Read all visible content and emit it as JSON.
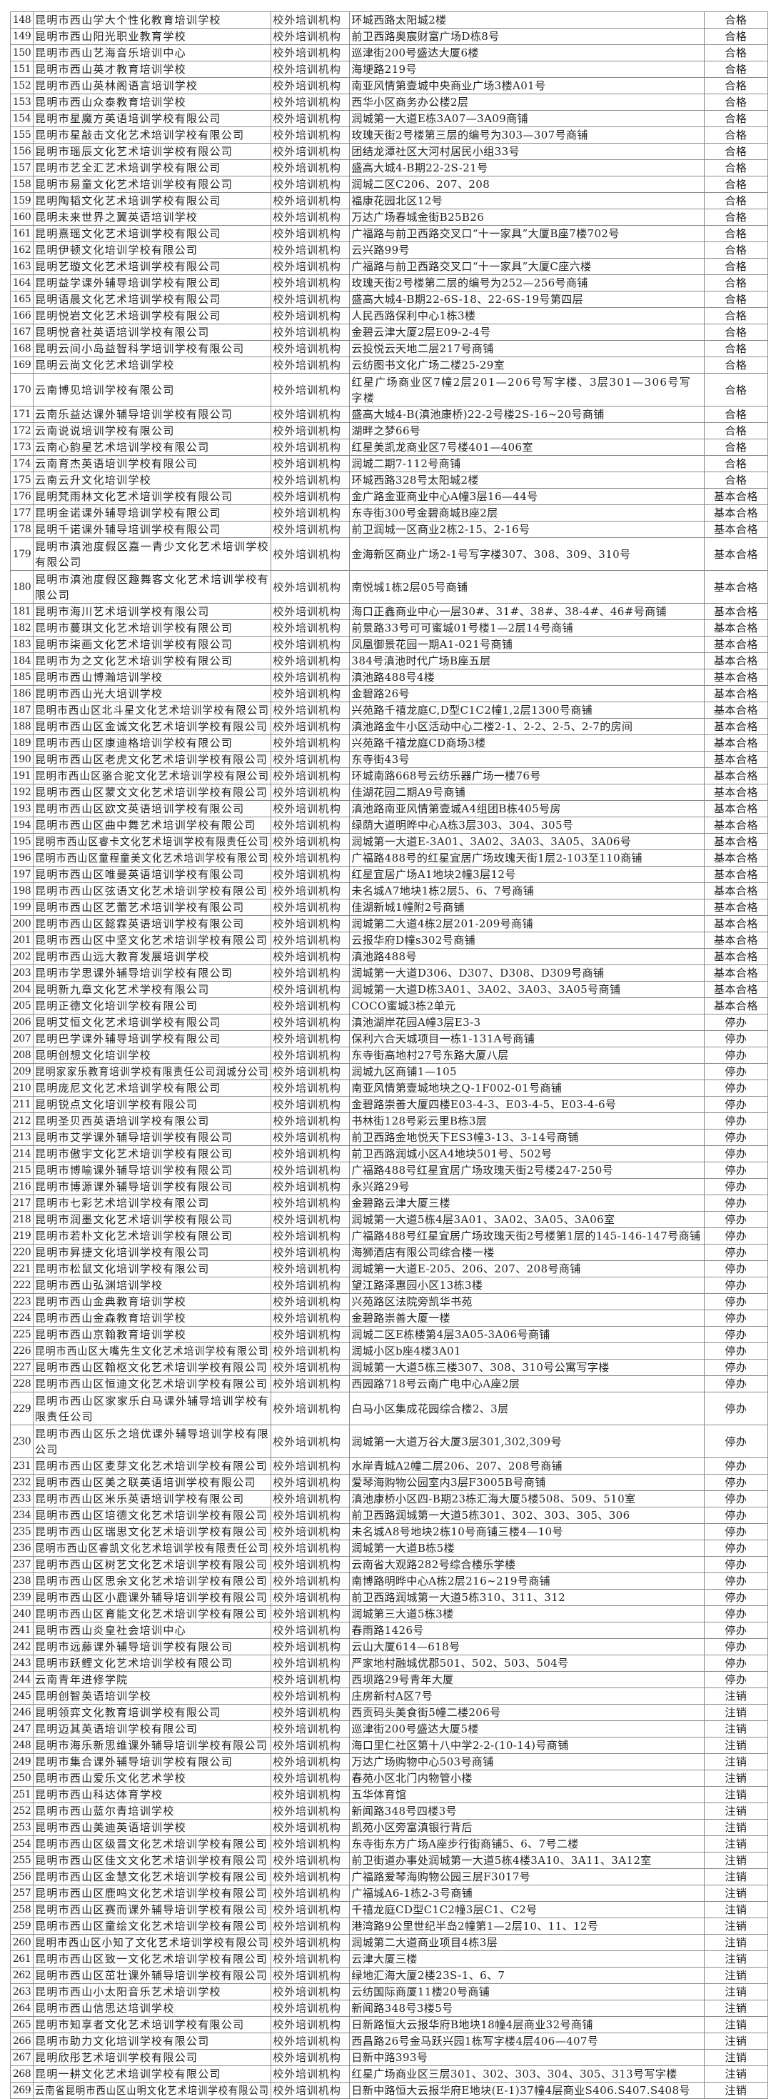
{
  "table": {
    "rows": [
      [
        "148",
        "昆明市西山学大个性化教育培训学校",
        "校外培训机构",
        "环城西路太阳城2楼",
        "合格"
      ],
      [
        "149",
        "昆明市西山阳光职业教育学校",
        "校外培训机构",
        "前卫西路奥宸财富广场D栋8号",
        "合格"
      ],
      [
        "150",
        "昆明市西山艺海音乐培训中心",
        "校外培训机构",
        "巡津街200号盛达大厦6楼",
        "合格"
      ],
      [
        "151",
        "昆明市西山英才教育培训学校",
        "校外培训机构",
        "海埂路219号",
        "合格"
      ],
      [
        "152",
        "昆明市西山英林阁语言培训学校",
        "校外培训机构",
        "南亚风情第壹城中央商业广场3楼A01号",
        "合格"
      ],
      [
        "153",
        "昆明市西山众泰教育培训学校",
        "校外培训机构",
        "西华小区商务办公楼2层",
        "合格"
      ],
      [
        "154",
        "昆明市星魔方英语培训学校有限公司",
        "校外培训机构",
        "润城第一大道E栋3A07—3A09商铺",
        "合格"
      ],
      [
        "155",
        "昆明市星敲击文化艺术培训学校有限公司",
        "校外培训机构",
        "玫瑰天街2号楼第三层的编号为303—307号商铺",
        "合格"
      ],
      [
        "156",
        "昆明市瑶辰文化艺术培训学校有限公司",
        "校外培训机构",
        "团结龙潭社区大河村居民小组33号",
        "合格"
      ],
      [
        "157",
        "昆明市艺全汇艺术培训学校有限公司",
        "校外培训机构",
        "盛高大城4-B期22-2S-21号",
        "合格"
      ],
      [
        "158",
        "昆明市易童文化艺术培训学校有限公司",
        "校外培训机构",
        "润城二区C206、207、208",
        "合格"
      ],
      [
        "159",
        "昆明陶韬文化艺术培训学校有限公司",
        "校外培训机构",
        "福康花园北区12号",
        "合格"
      ],
      [
        "160",
        "昆明未来世界之翼英语培训学校",
        "校外培训机构",
        "万达广场春城金街B25B26",
        "合格"
      ],
      [
        "161",
        "昆明熹瑶文化艺术培训学校有限公司",
        "校外培训机构",
        "广福路与前卫西路交叉口“十一家具”大厦B座7楼702号",
        "合格"
      ],
      [
        "162",
        "昆明伊顿文化培训学校有限公司",
        "校外培训机构",
        "云兴路99号",
        "合格"
      ],
      [
        "163",
        "昆明艺璇文化艺术培训学校有限公司",
        "校外培训机构",
        "广福路与前卫西路交叉口“十一家具”大厦C座六楼",
        "合格"
      ],
      [
        "164",
        "昆明益学课外辅导培训学校有限公司",
        "校外培训机构",
        "玫瑰天街2号楼第二层的编号为252—256号商铺",
        "合格"
      ],
      [
        "165",
        "昆明语晨文化艺术培训学校有限公司",
        "校外培训机构",
        "盛高大城4-B期22-6S-18、22-6S-19号第四层",
        "合格"
      ],
      [
        "166",
        "昆明悦岩文化艺术培训学校有限公司",
        "校外培训机构",
        "人民西路保利中心1栋3楼",
        "合格"
      ],
      [
        "167",
        "昆明悦音社英语培训学校有限公司",
        "校外培训机构",
        "金碧云津大厦2层E09-2-4号",
        "合格"
      ],
      [
        "168",
        "昆明云间小岛益智科学培训学校有限公司",
        "校外培训机构",
        "云投悦云天地二层217号商铺",
        "合格"
      ],
      [
        "169",
        "昆明云尚文化艺术培训学校",
        "校外培训机构",
        "云纺图书文化广场二楼25-29室",
        "合格"
      ],
      [
        "170",
        "云南博见培训学校有限公司",
        "校外培训机构",
        "红星广场商业区7幢2层201—206号写字楼、3层301—306号写字楼",
        "合格"
      ],
      [
        "171",
        "云南乐益达课外辅导培训学校有限公司",
        "校外培训机构",
        "盛高大城4-B(滇池康桥)22-2号楼2S-16~20号商铺",
        "合格"
      ],
      [
        "172",
        "云南说说培训学校有限公司",
        "校外培训机构",
        "湖畔之梦66号",
        "合格"
      ],
      [
        "173",
        "云南心韵星艺术培训学校有限公司",
        "校外培训机构",
        "红星美凯龙商业区7号楼401—406室",
        "合格"
      ],
      [
        "174",
        "云南育杰英语培训学校有限公司",
        "校外培训机构",
        "润城二期7-112号商铺",
        "合格"
      ],
      [
        "175",
        "云南云升文化培训学校",
        "校外培训机构",
        "环城西路328号太阳城2楼",
        "合格"
      ],
      [
        "176",
        "昆明梵雨林文化艺术培训学校有限公司",
        "校外培训机构",
        "金广路金亚商业中心A幢3层16—44号",
        "基本合格"
      ],
      [
        "177",
        "昆明金诺课外辅导培训学校有限公司",
        "校外培训机构",
        "东寺街300号金碧商城B座2层",
        "基本合格"
      ],
      [
        "178",
        "昆明千诺课外辅导培训学校有限公司",
        "校外培训机构",
        "前卫润城一区商业2栋2-15、2-16号",
        "基本合格"
      ],
      [
        "179",
        "昆明市滇池度假区嘉一青少文化艺术培训学校有限公司",
        "校外培训机构",
        "金海新区商业广场2-1号写字楼307、308、309、310号",
        "基本合格"
      ],
      [
        "180",
        "昆明市滇池度假区趣舞客文化艺术培训学校有限公司",
        "校外培训机构",
        "南悦城1栋2层05号商铺",
        "基本合格"
      ],
      [
        "181",
        "昆明市海川艺术培训学校有限公司",
        "校外培训机构",
        "海口正鑫商业中心一层30#、31#、38#、38-4#、46#号商铺",
        "基本合格"
      ],
      [
        "182",
        "昆明市蔓琪文化艺术培训学校有限公司",
        "校外培训机构",
        "前景路33号可可蜜城01号楼1—2层14号商铺",
        "基本合格"
      ],
      [
        "183",
        "昆明市柒画文化艺术培训学校有限公司",
        "校外培训机构",
        "凤凰御景花园一期A1-021号商铺",
        "基本合格"
      ],
      [
        "184",
        "昆明市为之文化艺术培训学校有限公司",
        "校外培训机构",
        "384号滇池时代广场B座五层",
        "基本合格"
      ],
      [
        "185",
        "昆明市西山博瀚培训学校",
        "校外培训机构",
        "滇池路488号4楼",
        "基本合格"
      ],
      [
        "186",
        "昆明市西山光大培训学校",
        "校外培训机构",
        "金碧路26号",
        "基本合格"
      ],
      [
        "187",
        "昆明市西山区北斗星文化艺术培训学校有限公司",
        "校外培训机构",
        "兴苑路千禧龙庭C,D型C1C2幢1,2层1300号商铺",
        "基本合格"
      ],
      [
        "188",
        "昆明市西山区金诚文化艺术培训学校有限公司",
        "校外培训机构",
        "滇池路金牛小区活动中心二楼2-1、2-2、2-5、2-7的房间",
        "基本合格"
      ],
      [
        "189",
        "昆明市西山区康迪格培训学校有限公司",
        "校外培训机构",
        "兴苑路千禧龙庭CD商场3楼",
        "基本合格"
      ],
      [
        "190",
        "昆明市西山区老虎文化艺术培训学校有限公司",
        "校外培训机构",
        "东寺街43号",
        "基本合格"
      ],
      [
        "191",
        "昆明市西山区骆合驼文化艺术培训学校有限公司",
        "校外培训机构",
        "环城南路668号云纺乐器广场一楼76号",
        "基本合格"
      ],
      [
        "192",
        "昆明市西山区蒙文文化艺术培训学校有限公司",
        "校外培训机构",
        "佳湖花园二期A9号商铺",
        "基本合格"
      ],
      [
        "193",
        "昆明市西山区欧文英语培训学校有限公司",
        "校外培训机构",
        "滇池路南亚风情第壹城A4组团B栋405号房",
        "基本合格"
      ],
      [
        "194",
        "昆明市西山区曲中舞艺术培训学校有限公司",
        "校外培训机构",
        "绿荫大道明晔中心A栋3层303、304、305号",
        "基本合格"
      ],
      [
        "195",
        "昆明市西山区睿卡文化艺术培训学校有限责任公司",
        "校外培训机构",
        "润城第一大道E-3A01、3A02、3A03、3A05、3A06号",
        "基本合格"
      ],
      [
        "196",
        "昆明市西山区童程童美文化艺术培训学校有限公司",
        "校外培训机构",
        "广福路488号的红星宜居广场玫瑰天街1层2-103至110商铺",
        "基本合格"
      ],
      [
        "197",
        "昆明市西山区唯曼英语培训学校有限公司",
        "校外培训机构",
        "红星宜居广场A1地块2幢3层12号",
        "基本合格"
      ],
      [
        "198",
        "昆明市西山区弦语文化艺术培训学校有限公司",
        "校外培训机构",
        "未名城A7地块1栋2层5、6、7号商铺",
        "基本合格"
      ],
      [
        "199",
        "昆明市西山区艺蕾艺术培训学校有限公司",
        "校外培训机构",
        "佳湖新城1幢附2号商铺",
        "基本合格"
      ],
      [
        "200",
        "昆明市西山区懿霖英语培训学校有限公司",
        "校外培训机构",
        "润城第二大道4栋2层201-209号商铺",
        "基本合格"
      ],
      [
        "201",
        "昆明市西山区中坚文化艺术培训学校有限公司",
        "校外培训机构",
        "云报华府D幢s302号商铺",
        "基本合格"
      ],
      [
        "202",
        "昆明市西山远大教育发展培训学校",
        "校外培训机构",
        "滇池路488号",
        "基本合格"
      ],
      [
        "203",
        "昆明市学思课外辅导培训学校有限公司",
        "校外培训机构",
        "润城第一大道D306、D307、D308、D309号商铺",
        "基本合格"
      ],
      [
        "204",
        "昆明新九章文化艺术学校有限公司",
        "校外培训机构",
        "润城第一大道D栋3A01、3A02、3A03、3A05号商铺",
        "基本合格"
      ],
      [
        "205",
        "昆明正德文化培训学校有限公司",
        "校外培训机构",
        "COCO蜜城3栋2单元",
        "基本合格"
      ],
      [
        "206",
        "昆明艾恒文化艺术培训学校有限公司",
        "校外培训机构",
        "滇池湖岸花园A幢3层E3-3",
        "停办"
      ],
      [
        "207",
        "昆明巴学课外辅导培训学校有限公司",
        "校外培训机构",
        "保利六合天城项目一栋1-131A号商铺",
        "停办"
      ],
      [
        "208",
        "昆明创想文化培训学校",
        "校外培训机构",
        "东寺街高地村27号东路大厦八层",
        "停办"
      ],
      [
        "209",
        "昆明家家乐教育培训学校有限责任公司润城分公司",
        "校外培训机构",
        "润城九区商铺1—105",
        "停办"
      ],
      [
        "210",
        "昆明庞尼文化艺术培训学校有限公司",
        "校外培训机构",
        "南亚风情第壹城地块之Q-1F002-01号商铺",
        "停办"
      ],
      [
        "211",
        "昆明锐点文化培训学校有限公司",
        "校外培训机构",
        "金碧路崇善大厦四楼E03-4-3、E03-4-5、E03-4-6号",
        "停办"
      ],
      [
        "212",
        "昆明圣贝西英语培训学校有限公司",
        "校外培训机构",
        "书林街128号彩云里B栋3层",
        "停办"
      ],
      [
        "213",
        "昆明市艾学课外辅导培训学校有限公司",
        "校外培训机构",
        "前卫西路金地悦天下ES3幢3-13、3-14号商铺",
        "停办"
      ],
      [
        "214",
        "昆明市傲宇文化艺术培训学校有限公司",
        "校外培训机构",
        "前卫西路润城小区A4地块501号、502号",
        "停办"
      ],
      [
        "215",
        "昆明市博喻课外辅导培训学校有限公司",
        "校外培训机构",
        "广福路488号红星宜居广场玫瑰天街2号楼247-250号",
        "停办"
      ],
      [
        "216",
        "昆明市博源课外辅导培训学校有限公司",
        "校外培训机构",
        "永兴路29号",
        "停办"
      ],
      [
        "217",
        "昆明市七彩艺术培训学校有限公司",
        "校外培训机构",
        "金碧路云津大厦三楼",
        "停办"
      ],
      [
        "218",
        "昆明市润墨文化艺术培训学校有限公司",
        "校外培训机构",
        "润城第一大道5栋4层3A01、3A02、3A05、3A06室",
        "停办"
      ],
      [
        "219",
        "昆明市若朴文化艺术培训学校有限公司",
        "校外培训机构",
        "广福路488号红星宜居广场玫瑰天街2号楼第1层的145-146-147号商铺",
        "停办"
      ],
      [
        "220",
        "昆明市昇捷文化培训学校有限公司",
        "校外培训机构",
        "海狮酒店有限公司综合楼一楼",
        "停办"
      ],
      [
        "221",
        "昆明市松鼠文化培训学校有限公司",
        "校外培训机构",
        "润城第一大道E-205、206、207、208号商铺",
        "停办"
      ],
      [
        "222",
        "昆明市西山弘渊培训学校",
        "校外培训机构",
        "望江路泽惠园小区13栋3楼",
        "停办"
      ],
      [
        "223",
        "昆明市西山金典教育培训学校",
        "校外培训机构",
        "兴苑路区法院旁凯华书苑",
        "停办"
      ],
      [
        "224",
        "昆明市西山金森教育培训学校",
        "校外培训机构",
        "金碧路崇善大厦一楼",
        "停办"
      ],
      [
        "225",
        "昆明市西山京翰教育培训学校",
        "校外培训机构",
        "润城二区E栋楼第4层3A05-3A06号商铺",
        "停办"
      ],
      [
        "226",
        "昆明市西山区大嘴先生文化艺术培训学校有限公司",
        "校外培训机构",
        "润城小区b座4楼3A01",
        "停办"
      ],
      [
        "227",
        "昆明市西山区翰枢文化艺术培训学校有限公司",
        "校外培训机构",
        "润城第一大道5栋三楼307、308、310号公寓写字楼",
        "停办"
      ],
      [
        "228",
        "昆明市西山区恒迪文化艺术培训学校有限公司",
        "校外培训机构",
        "西园路718号云南广电中心A座2层",
        "停办"
      ],
      [
        "229",
        "昆明市西山区家家乐白马课外辅导培训学校有限责任公司",
        "校外培训机构",
        "白马小区集成花园综合楼2、3层",
        "停办"
      ],
      [
        "230",
        "昆明市西山区乐之培优课外辅导培训学校有限公司",
        "校外培训机构",
        "润城第一大道万谷大厦3层301,302,309号",
        "停办"
      ],
      [
        "231",
        "昆明市西山区麦芽文化艺术培训学校有限公司",
        "校外培训机构",
        "水岸青城A2幢二层206、207、208号商铺",
        "停办"
      ],
      [
        "232",
        "昆明市西山区美之联英语培训学校有限公司",
        "校外培训机构",
        "爱琴海购物公园室内3层F3005B号商铺",
        "停办"
      ],
      [
        "233",
        "昆明市西山区米乐英语培训学校有限公司",
        "校外培训机构",
        "滇池康桥小区四-B期23栋汇海大厦5楼508、509、510室",
        "停办"
      ],
      [
        "234",
        "昆明市西山区培德文化艺术培训学校有限公司",
        "校外培训机构",
        "前卫西路润城第一大道5栋301、302、303、305、306",
        "停办"
      ],
      [
        "235",
        "昆明市西山区瑞思文化艺术培训学校有限公司",
        "校外培训机构",
        "未名城A8号地块2栋10号商铺三楼4—10号",
        "停办"
      ],
      [
        "236",
        "昆明市西山区睿凯文化艺术培训学校有限责任公司",
        "校外培训机构",
        "润城第一大道B栋5楼",
        "停办"
      ],
      [
        "237",
        "昆明市西山区树艺文化艺术培训学校有限公司",
        "校外培训机构",
        "云南省大观路282号综合楼乐学楼",
        "停办"
      ],
      [
        "238",
        "昆明市西山区思余文化艺术培训学校有限公司",
        "校外培训机构",
        "南博路明晔中心A栋2层216~219号商铺",
        "停办"
      ],
      [
        "239",
        "昆明市西山区小鹿课外辅导培训学校有限公司",
        "校外培训机构",
        "前卫西路润城第一大道5栋310、311、312",
        "停办"
      ],
      [
        "240",
        "昆明市西山区育能文化艺术培训学校有限公司",
        "校外培训机构",
        "润城第三大道5栋3楼",
        "停办"
      ],
      [
        "241",
        "昆明市西山炎皇社会培训中心",
        "校外培训机构",
        "春雨路1426号",
        "停办"
      ],
      [
        "242",
        "昆明市远藤课外辅导培训学校有限公司",
        "校外培训机构",
        "云山大厦614—618号",
        "停办"
      ],
      [
        "243",
        "昆明市跃鲤文化艺术培训学校有限公司",
        "校外培训机构",
        "严家地村融城优郡501、502、503、504号",
        "停办"
      ],
      [
        "244",
        "云南青年进修学院",
        "校外培训机构",
        "西坝路29号青年大厦",
        "停办"
      ],
      [
        "245",
        "昆明创智英语培训学校",
        "校外培训机构",
        "庄房新村A区7号",
        "注销"
      ],
      [
        "246",
        "昆明领弈文化教育培训学校有限公司",
        "校外培训机构",
        "西贡码头美食街5幢二楼206号",
        "注销"
      ],
      [
        "247",
        "昆明迈其英语培训学校有限公司",
        "校外培训机构",
        "巡津街200号盛达大厦5楼",
        "注销"
      ],
      [
        "248",
        "昆明市海乐新思维课外辅导培训学校有限公司",
        "校外培训机构",
        "海口里仁社区第十八中学2-2-(10-14)号商铺",
        "注销"
      ],
      [
        "249",
        "昆明市集合课外辅导培训学校有限公司",
        "校外培训机构",
        "万达广场购物中心503号商铺",
        "注销"
      ],
      [
        "250",
        "昆明市西山爱乐文化艺术学校",
        "校外培训机构",
        "春苑小区北门内物管小楼",
        "注销"
      ],
      [
        "251",
        "昆明市西山科达体育学校",
        "校外培训机构",
        "五华体育馆",
        "注销"
      ],
      [
        "252",
        "昆明市西山蓝尔青培训学校",
        "校外培训机构",
        "新闻路348号四楼3号",
        "注销"
      ],
      [
        "253",
        "昆明市西山美迪英语培训学校",
        "校外培训机构",
        "凯苑小区旁富滇银行背后",
        "注销"
      ],
      [
        "254",
        "昆明市西山区级晋文化艺术培训学校有限公司",
        "校外培训机构",
        "东寺街东方广场A座步行街商铺5、6、7号二楼",
        "注销"
      ],
      [
        "255",
        "昆明市西山区佳文文化艺术培训学校有限公司",
        "校外培训机构",
        "前卫街道办事处润城第一大道5栋4楼3A10、3A11、3A12室",
        "注销"
      ],
      [
        "256",
        "昆明市西山区金慧文化艺术培训学校有限公司",
        "校外培训机构",
        "广福路爱琴海购物公园三层F3017号",
        "注销"
      ],
      [
        "257",
        "昆明市西山区鹿鸣文化艺术培训学校有限公司",
        "校外培训机构",
        "广福城A6-1栋2-3号商铺",
        "注销"
      ],
      [
        "258",
        "昆明市西山区赛而课外辅导培训学校有限公司",
        "校外培训机构",
        "千禧龙庭CD型C1C2幢3层C1、C2号",
        "注销"
      ],
      [
        "259",
        "昆明市西山区童绘文化艺术培训学校有限公司",
        "校外培训机构",
        "港湾路9公里世纪半岛2幢第1—2层10、11、12号",
        "注销"
      ],
      [
        "260",
        "昆明市西山区小知了文化艺术培训学校有限公司",
        "校外培训机构",
        "润城第二大道商业项目4栋3层",
        "注销"
      ],
      [
        "261",
        "昆明市西山区致一文化艺术培训学校有限公司",
        "校外培训机构",
        "云津大厦三楼",
        "注销"
      ],
      [
        "262",
        "昆明市西山区茁壮课外辅导培训学校有限公司",
        "校外培训机构",
        "绿地汇海大厦2楼23S-1、6、7",
        "注销"
      ],
      [
        "263",
        "昆明市西山小太阳音乐艺术培训学校",
        "校外培训机构",
        "云纺国际商厦11楼20号商铺",
        "注销"
      ],
      [
        "264",
        "昆明市西山信思达培训学校",
        "校外培训机构",
        "新闻路348号3楼5号",
        "注销"
      ],
      [
        "265",
        "昆明市知享者文化艺术培训学校有限公司",
        "校外培训机构",
        "日新路恒大云报华府B地块18幢4层商业32号商铺",
        "注销"
      ],
      [
        "266",
        "昆明市助力文化培训学校有限公司",
        "校外培训机构",
        "西昌路26号金马跃兴园1栋写字楼4层406—407号",
        "注销"
      ],
      [
        "267",
        "昆明欣彤艺术培训学校有限公司",
        "校外培训机构",
        "日新中路393号",
        "注销"
      ],
      [
        "268",
        "昆明一耕文化艺术培训学校有限公司",
        "校外培训机构",
        "红星广场商业区三层301、302、303、304、305、313号写字楼",
        "注销"
      ],
      [
        "269",
        "云南省昆明市西山区山明文化艺术培训学校有限公司",
        "校外培训机构",
        "日新中路恒大云报华府E地块(E-1)37幢4层商业S406.S407.S408号",
        "注销"
      ]
    ]
  }
}
